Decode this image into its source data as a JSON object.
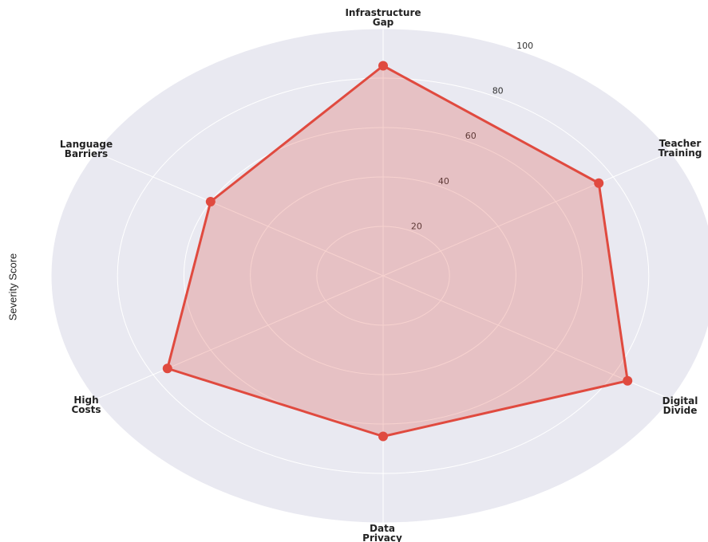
{
  "chart_data": {
    "type": "radar",
    "title": "",
    "ylabel": "Severity Score",
    "categories": [
      "Infrastructure\nGap",
      "Teacher\nTraining",
      "Digital\nDivide",
      "Data\nPrivacy",
      "High\nCosts",
      "Language\nBarriers"
    ],
    "values": [
      85,
      75,
      85,
      65,
      75,
      60
    ],
    "rticks": [
      20,
      40,
      60,
      80,
      100
    ],
    "rlim": [
      0,
      100
    ],
    "grid": true,
    "colors": {
      "series": "#e04a3f",
      "fill": "rgba(224,74,63,0.25)",
      "background": "#e9e9f1",
      "grid": "#ffffff"
    }
  }
}
